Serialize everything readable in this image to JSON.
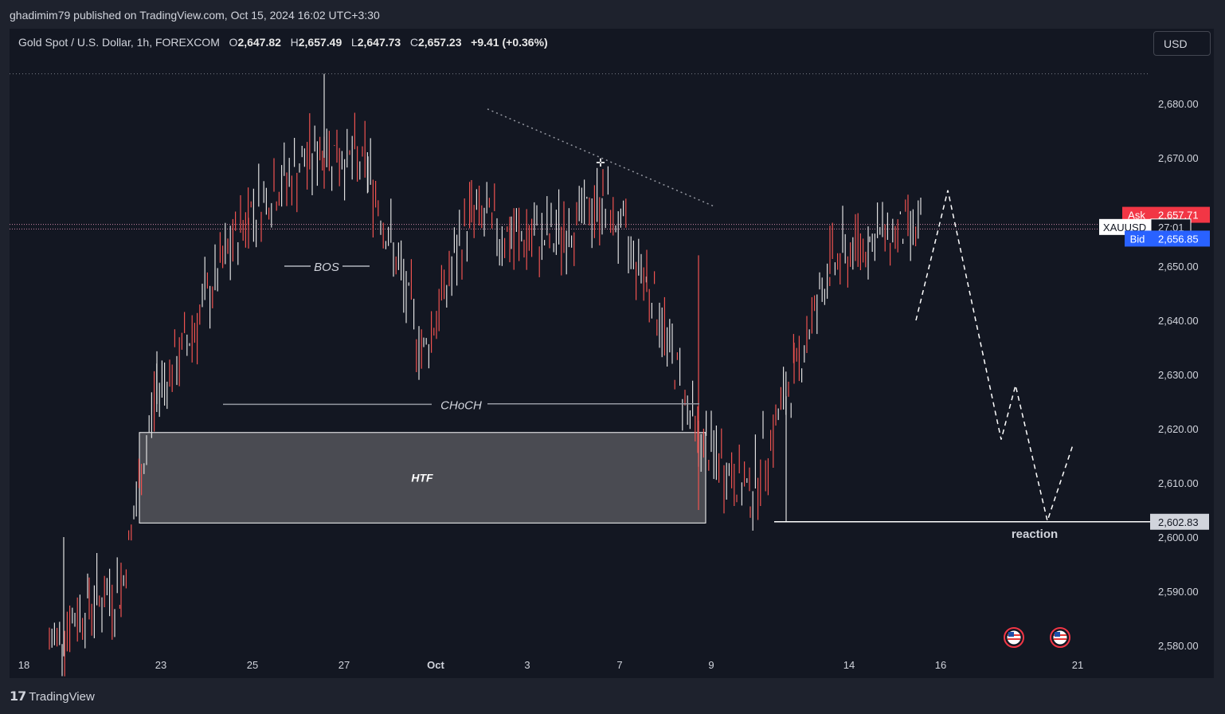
{
  "header": {
    "published_line": "ghadimim79 published on TradingView.com, Oct 15, 2024 16:02 UTC+3:30"
  },
  "legend": {
    "symbol_desc": "Gold Spot / U.S. Dollar, 1h, FOREXCOM",
    "o_label": "O",
    "o_value": "2,647.82",
    "h_label": "H",
    "h_value": "2,657.49",
    "l_label": "L",
    "l_value": "2,647.73",
    "c_label": "C",
    "c_value": "2,657.23",
    "change": "+9.41 (+0.36%)"
  },
  "toolbar": {
    "currency": "USD"
  },
  "footer": {
    "brand": "TradingView",
    "logo_icon": "tradingview-logo-icon"
  },
  "colors": {
    "background": "#131722",
    "candle": "#e0e0e0",
    "candle_down": "#ef5350",
    "ask": "#f23645",
    "bid": "#2962ff",
    "projection": "#ffffff",
    "htf_zone": "#4a4b52"
  },
  "chart_data": {
    "type": "candlestick",
    "symbol": "XAUUSD",
    "timeframe": "1h",
    "x_ticks": [
      "18",
      "23",
      "25",
      "27",
      "Oct",
      "3",
      "7",
      "9",
      "14",
      "16",
      "21"
    ],
    "y_ticks": [
      2580,
      2590,
      2600,
      2610,
      2620,
      2630,
      2640,
      2650,
      2660,
      2670,
      2680
    ],
    "y_tick_labels": [
      "2,580.00",
      "2,590.00",
      "2,600.00",
      "2,610.00",
      "2,620.00",
      "2,630.00",
      "2,640.00",
      "2,650.00",
      "2,660.00",
      "2,670.00",
      "2,680.00"
    ],
    "ylim": [
      2575,
      2690
    ],
    "price_tags": {
      "ask_label": "Ask",
      "ask_value": "2,657.71",
      "ask_price": 2657.71,
      "symbol_label": "XAUUSD",
      "countdown": "27:01",
      "last_price": 2657.23,
      "bid_label": "Bid",
      "bid_value": "2,656.85",
      "bid_price": 2656.85,
      "level_value": "2,602.83",
      "level_price": 2602.83,
      "top_dotted_price": 2685.5
    },
    "series_points": [
      {
        "x": "Sep 18",
        "y": 2580
      },
      {
        "x": "Sep 19",
        "y": 2588
      },
      {
        "x": "Sep 20",
        "y": 2590
      },
      {
        "x": "Sep 23",
        "y": 2628
      },
      {
        "x": "Sep 24",
        "y": 2632
      },
      {
        "x": "Sep 25",
        "y": 2660
      },
      {
        "x": "Sep 26",
        "y": 2672
      },
      {
        "x": "Sep 27",
        "y": 2668
      },
      {
        "x": "Sep 30",
        "y": 2634
      },
      {
        "x": "Oct 1",
        "y": 2660
      },
      {
        "x": "Oct 2",
        "y": 2655
      },
      {
        "x": "Oct 3",
        "y": 2655
      },
      {
        "x": "Oct 4",
        "y": 2662
      },
      {
        "x": "Oct 7",
        "y": 2648
      },
      {
        "x": "Oct 8",
        "y": 2618
      },
      {
        "x": "Oct 9",
        "y": 2608
      },
      {
        "x": "Oct 10",
        "y": 2630
      },
      {
        "x": "Oct 11",
        "y": 2650
      },
      {
        "x": "Oct 14",
        "y": 2655
      },
      {
        "x": "Oct 15",
        "y": 2657.23
      }
    ],
    "annotations": {
      "bos": "BOS",
      "choch": "CHoCH",
      "htf": "HTF",
      "reaction": "reaction"
    },
    "projection_path_prices": [
      2640,
      2664,
      2618,
      2628,
      2603,
      2617
    ],
    "event_icons": [
      "us-flag-icon",
      "us-flag-icon"
    ]
  }
}
